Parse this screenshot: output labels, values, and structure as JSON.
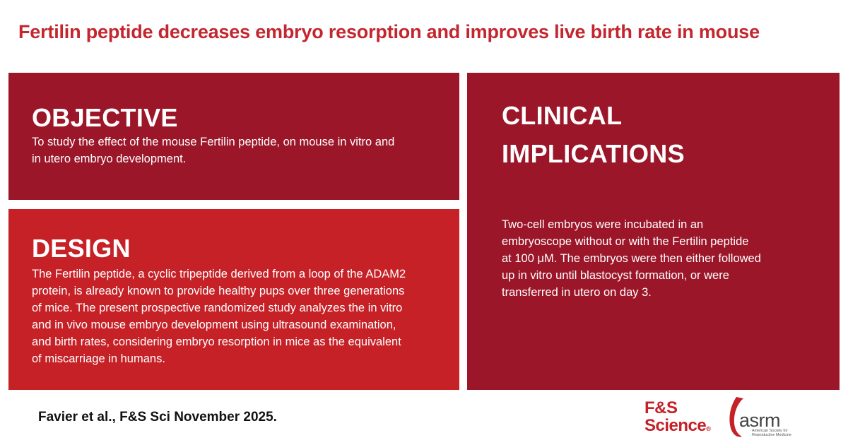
{
  "title": "Fertilin peptide decreases embryo resorption and improves live birth rate in mouse",
  "objective": {
    "heading": "OBJECTIVE",
    "lines": [
      "To study the effect of the mouse Fertilin peptide, on mouse in vitro and",
      "in utero embryo development."
    ]
  },
  "design": {
    "heading": "DESIGN",
    "lines": [
      "The Fertilin peptide, a cyclic tripeptide derived from a loop of the ADAM2",
      "protein, is already known to provide healthy pups over three generations",
      "of mice. The present prospective randomized study analyzes the in vitro",
      "and in vivo mouse embryo development using ultrasound examination,",
      "and birth rates, considering embryo resorption in mice as the equivalent",
      "of miscarriage in humans."
    ]
  },
  "clinical": {
    "heading_line1": "CLINICAL",
    "heading_line2": "IMPLICATIONS",
    "lines": [
      "Two-cell embryos were incubated in an",
      "embryoscope without or with the Fertilin peptide",
      "at 100 μM. The embryos were then either followed",
      "up in vitro until blastocyst formation, or were",
      "transferred in utero on day 3."
    ]
  },
  "citation": "Favier et al., F&S Sci November 2025.",
  "logos": {
    "fs_line1": "F&S",
    "fs_line2": "Science",
    "fs_mark": "®",
    "asrm_word": "asrm",
    "asrm_tag_line1": "American Society for",
    "asrm_tag_line2": "Reproductive Medicine"
  },
  "colors": {
    "title_red": "#c3262e",
    "panel_dark_red": "#9b1629",
    "panel_red": "#c52127"
  }
}
